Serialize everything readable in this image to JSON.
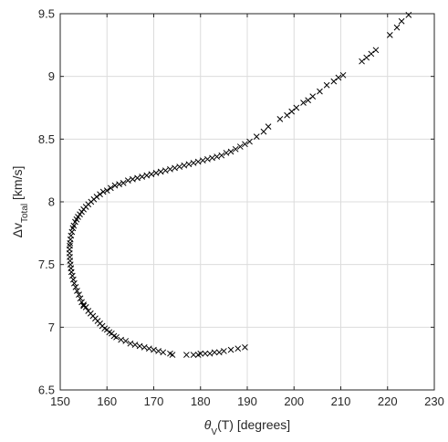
{
  "chart_data": {
    "type": "scatter",
    "xlabel": {
      "main": "θ",
      "sub": "V",
      "rest": "(T) [degrees]"
    },
    "ylabel": {
      "main": "Δv",
      "sub": "Total",
      "rest": " [km/s]"
    },
    "xlim": [
      150,
      230
    ],
    "ylim": [
      6.5,
      9.5
    ],
    "xticks": [
      150,
      160,
      170,
      180,
      190,
      200,
      210,
      220,
      230
    ],
    "yticks": [
      6.5,
      7,
      7.5,
      8,
      8.5,
      9,
      9.5
    ],
    "xtick_labels": [
      "150",
      "160",
      "170",
      "180",
      "190",
      "200",
      "210",
      "220",
      "230"
    ],
    "ytick_labels": [
      "6.5",
      "7",
      "7.5",
      "8",
      "8.5",
      "9",
      "9.5"
    ],
    "grid": true,
    "marker": "x",
    "marker_color": "#000000",
    "series": [
      {
        "x": [
          189.5,
          188.0,
          186.5,
          185.0,
          184.0,
          183.0,
          182.0,
          181.0,
          180.0,
          179.5,
          178.5,
          177.0,
          174.0,
          173.5,
          172.0,
          171.0,
          170.0,
          169.0,
          168.0,
          167.0,
          166.0,
          165.0,
          164.0,
          163.0,
          162.0,
          161.5,
          161.0,
          160.5,
          160.0,
          159.5,
          159.0,
          158.5,
          158.0,
          157.5,
          157.0,
          156.5,
          156.0,
          155.5,
          155.0,
          155.0,
          154.6,
          154.3,
          154.0,
          153.6,
          153.3,
          153.0,
          152.8,
          152.6,
          152.4,
          152.3,
          152.2,
          152.1,
          152.05,
          152.0,
          152.0,
          152.05,
          152.1,
          152.2,
          152.3,
          152.5,
          152.7,
          152.9,
          153.2,
          153.5,
          153.8,
          154.2,
          154.6,
          155.0,
          155.5,
          156.0,
          156.6,
          157.2,
          157.8,
          158.5,
          159.2,
          160.0,
          160.8,
          161.7,
          162.6,
          163.5,
          164.5,
          165.5,
          166.5,
          167.5,
          168.5,
          169.5,
          170.5,
          171.5,
          172.5,
          173.5,
          174.5,
          175.5,
          176.5,
          177.5,
          178.5,
          179.5,
          180.5,
          181.5,
          182.5,
          183.5,
          184.5,
          185.5,
          186.5,
          187.5,
          188.5,
          189.5,
          190.5,
          192.0,
          193.5,
          194.5,
          197.0,
          198.5,
          199.5,
          200.5,
          202.0,
          203.0,
          204.0,
          205.5,
          207.0,
          208.5,
          209.5,
          210.5,
          214.5,
          215.5,
          216.5,
          217.5,
          220.5,
          222.0,
          223.0,
          224.5
        ],
        "y": [
          6.84,
          6.83,
          6.82,
          6.81,
          6.8,
          6.8,
          6.79,
          6.79,
          6.79,
          6.78,
          6.78,
          6.78,
          6.78,
          6.79,
          6.8,
          6.81,
          6.82,
          6.83,
          6.84,
          6.85,
          6.86,
          6.87,
          6.89,
          6.9,
          6.92,
          6.93,
          6.95,
          6.96,
          6.98,
          6.99,
          7.01,
          7.03,
          7.05,
          7.07,
          7.09,
          7.11,
          7.13,
          7.16,
          7.18,
          7.17,
          7.2,
          7.23,
          7.26,
          7.29,
          7.32,
          7.35,
          7.38,
          7.41,
          7.44,
          7.47,
          7.5,
          7.53,
          7.56,
          7.59,
          7.62,
          7.65,
          7.67,
          7.7,
          7.73,
          7.76,
          7.79,
          7.81,
          7.84,
          7.86,
          7.88,
          7.9,
          7.92,
          7.94,
          7.96,
          7.98,
          8.0,
          8.02,
          8.04,
          8.06,
          8.08,
          8.09,
          8.11,
          8.13,
          8.14,
          8.15,
          8.17,
          8.18,
          8.19,
          8.2,
          8.21,
          8.22,
          8.23,
          8.24,
          8.25,
          8.26,
          8.27,
          8.28,
          8.29,
          8.3,
          8.31,
          8.32,
          8.33,
          8.34,
          8.35,
          8.36,
          8.37,
          8.39,
          8.4,
          8.42,
          8.44,
          8.46,
          8.48,
          8.52,
          8.56,
          8.6,
          8.66,
          8.69,
          8.72,
          8.75,
          8.79,
          8.81,
          8.84,
          8.88,
          8.93,
          8.96,
          8.99,
          9.01,
          9.12,
          9.15,
          9.18,
          9.21,
          9.33,
          9.39,
          9.44,
          9.49
        ]
      }
    ]
  }
}
